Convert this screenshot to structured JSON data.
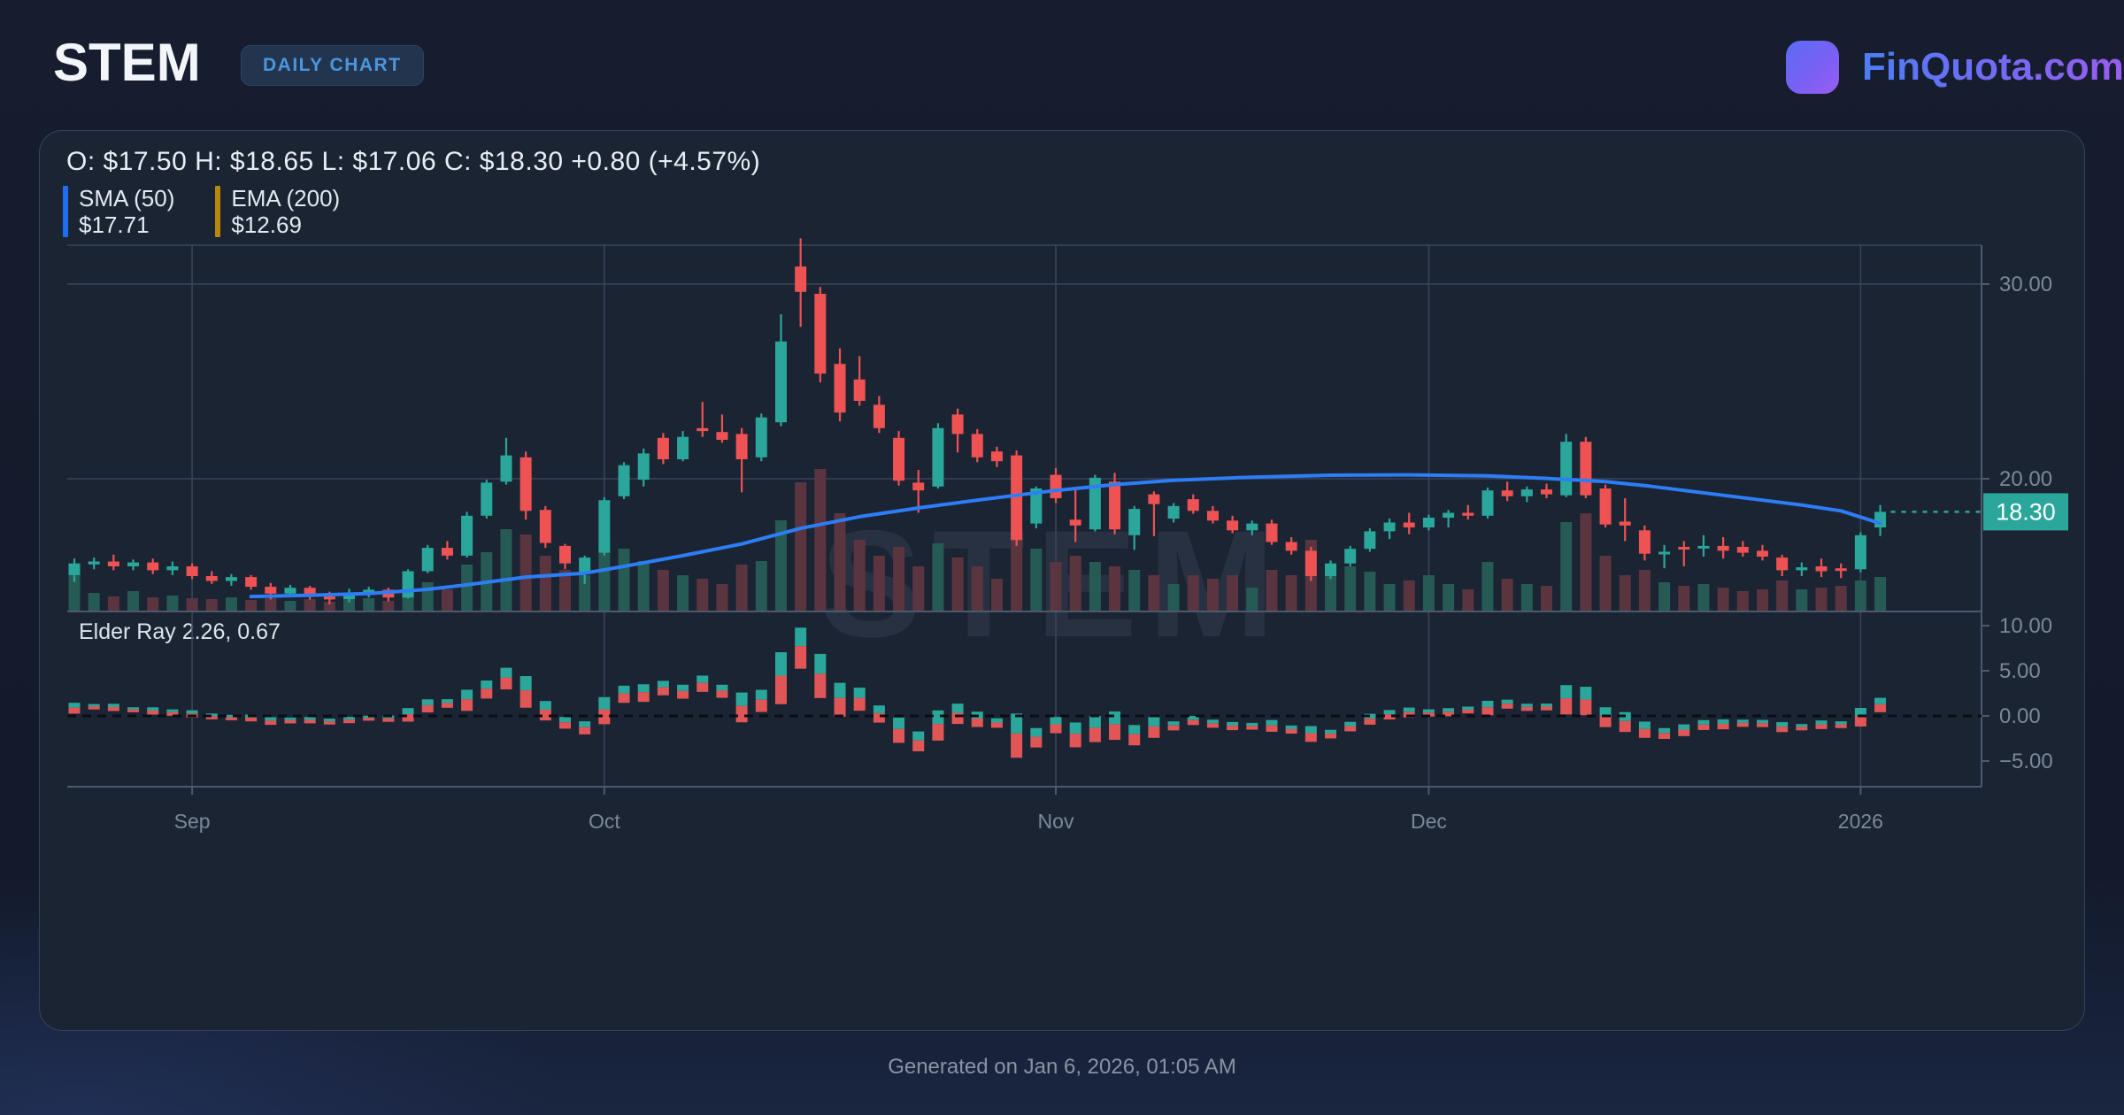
{
  "header": {
    "ticker": "STEM",
    "badge": "DAILY CHART",
    "brand": "FinQuota.com"
  },
  "ohlc_line": "O: $17.50 H: $18.65 L: $17.06 C: $18.30 +0.80 (+4.57%)",
  "indicators": [
    {
      "name": "SMA (50)",
      "value": "$17.71",
      "color": "#1f6ef0"
    },
    {
      "name": "EMA (200)",
      "value": "$12.69",
      "color": "#b8860b"
    }
  ],
  "elder_ray_label": "Elder Ray 2.26, 0.67",
  "watermark": "STEM",
  "footer": {
    "text": "Generated on Jan 6, 2026, 01:05 AM"
  },
  "colors": {
    "candle_up": "#2aa79a",
    "candle_down": "#ee5253",
    "volume_up": "#265a54",
    "volume_down": "#5a3540",
    "sma_line": "#2d7df6",
    "grid": "#39445a",
    "axis_border": "#4d596e",
    "axis_text": "#7c8899",
    "price_tag_bg": "#2aa79a",
    "price_tag_text": "#ffffff",
    "zero_dash": "#0a0e15",
    "elder_bull": "#2aa79a",
    "elder_bear": "#e05656"
  },
  "chart_data": {
    "type": "candlestick",
    "title": "STEM daily candlestick chart with volume, SMA(50) overlay and Elder Ray sub-chart",
    "x_ticks": [
      {
        "label": "Sep",
        "index": 6
      },
      {
        "label": "Oct",
        "index": 27
      },
      {
        "label": "Nov",
        "index": 50
      },
      {
        "label": "Dec",
        "index": 69
      },
      {
        "label": "2026",
        "index": 91
      }
    ],
    "y_axis_main": {
      "ticks": [
        30.0,
        20.0
      ],
      "unit": "USD"
    },
    "y_axis_sub": {
      "ticks": [
        10.0,
        5.0,
        0.0,
        -5.0
      ]
    },
    "last_price": 18.3,
    "last_price_label": "18.30",
    "elder_ray_values": {
      "bull": 2.26,
      "bear": 0.67
    },
    "candles": [
      [
        15.05,
        15.9,
        14.7,
        15.65,
        0.42
      ],
      [
        15.6,
        15.95,
        15.35,
        15.75,
        0.2
      ],
      [
        15.75,
        16.1,
        15.3,
        15.5,
        0.16
      ],
      [
        15.5,
        15.85,
        15.3,
        15.7,
        0.22
      ],
      [
        15.7,
        15.9,
        15.1,
        15.3,
        0.15
      ],
      [
        15.3,
        15.75,
        15.05,
        15.5,
        0.17
      ],
      [
        15.5,
        15.65,
        14.85,
        15.0,
        0.14
      ],
      [
        15.0,
        15.25,
        14.6,
        14.75,
        0.13
      ],
      [
        14.75,
        15.1,
        14.5,
        14.95,
        0.15
      ],
      [
        14.95,
        15.05,
        14.3,
        14.45,
        0.12
      ],
      [
        14.45,
        14.65,
        13.8,
        14.1,
        0.14
      ],
      [
        14.1,
        14.55,
        13.9,
        14.4,
        0.11
      ],
      [
        14.4,
        14.5,
        13.8,
        13.95,
        0.13
      ],
      [
        13.95,
        14.2,
        13.55,
        13.8,
        0.1
      ],
      [
        13.8,
        14.35,
        13.65,
        14.15,
        0.12
      ],
      [
        14.15,
        14.45,
        13.9,
        14.3,
        0.14
      ],
      [
        14.3,
        14.4,
        13.7,
        13.9,
        0.11
      ],
      [
        13.9,
        15.35,
        13.85,
        15.25,
        0.26
      ],
      [
        15.25,
        16.6,
        15.15,
        16.45,
        0.32
      ],
      [
        16.45,
        16.8,
        15.85,
        16.05,
        0.24
      ],
      [
        16.05,
        18.3,
        15.95,
        18.1,
        0.52
      ],
      [
        18.1,
        19.95,
        17.95,
        19.8,
        0.66
      ],
      [
        19.85,
        22.1,
        19.7,
        21.2,
        0.92
      ],
      [
        21.1,
        21.4,
        17.9,
        18.35,
        0.86
      ],
      [
        18.4,
        18.6,
        16.45,
        16.7,
        0.62
      ],
      [
        16.55,
        16.65,
        15.35,
        15.65,
        0.46
      ],
      [
        15.1,
        16.05,
        14.6,
        15.95,
        0.4
      ],
      [
        16.2,
        19.05,
        16.05,
        18.9,
        0.76
      ],
      [
        19.1,
        20.85,
        18.95,
        20.7,
        0.7
      ],
      [
        19.95,
        21.55,
        19.6,
        21.3,
        0.56
      ],
      [
        22.1,
        22.35,
        20.75,
        21.0,
        0.46
      ],
      [
        21.0,
        22.45,
        20.9,
        22.15,
        0.4
      ],
      [
        22.6,
        23.95,
        22.15,
        22.45,
        0.36
      ],
      [
        22.4,
        23.3,
        21.85,
        22.0,
        0.3
      ],
      [
        22.3,
        22.6,
        19.3,
        21.0,
        0.52
      ],
      [
        21.1,
        23.35,
        20.9,
        23.15,
        0.56
      ],
      [
        22.9,
        28.45,
        22.7,
        27.05,
        1.02
      ],
      [
        30.9,
        32.35,
        27.8,
        29.6,
        1.45
      ],
      [
        29.5,
        29.85,
        24.95,
        25.4,
        1.6
      ],
      [
        25.9,
        26.7,
        22.95,
        23.4,
        1.1
      ],
      [
        25.1,
        26.3,
        23.75,
        24.0,
        0.8
      ],
      [
        23.8,
        24.25,
        22.35,
        22.6,
        0.62
      ],
      [
        22.1,
        22.45,
        19.65,
        19.9,
        0.72
      ],
      [
        19.8,
        20.45,
        18.25,
        19.4,
        0.5
      ],
      [
        19.6,
        22.85,
        19.5,
        22.6,
        0.76
      ],
      [
        23.3,
        23.6,
        21.35,
        22.3,
        0.6
      ],
      [
        22.3,
        22.55,
        20.85,
        21.1,
        0.5
      ],
      [
        21.4,
        21.65,
        20.6,
        20.9,
        0.36
      ],
      [
        21.2,
        21.45,
        16.55,
        16.85,
        0.95
      ],
      [
        17.7,
        19.6,
        17.45,
        19.5,
        0.7
      ],
      [
        20.2,
        20.55,
        18.75,
        19.0,
        0.55
      ],
      [
        17.9,
        19.5,
        16.75,
        17.6,
        0.62
      ],
      [
        17.4,
        20.2,
        17.3,
        20.05,
        0.55
      ],
      [
        19.85,
        20.3,
        17.15,
        17.4,
        0.5
      ],
      [
        17.1,
        18.6,
        16.35,
        18.45,
        0.46
      ],
      [
        19.2,
        19.35,
        17.05,
        18.7,
        0.4
      ],
      [
        17.95,
        18.75,
        17.75,
        18.6,
        0.3
      ],
      [
        18.95,
        19.2,
        18.2,
        18.35,
        0.4
      ],
      [
        18.35,
        18.6,
        17.7,
        17.85,
        0.36
      ],
      [
        17.85,
        18.1,
        17.2,
        17.35,
        0.4
      ],
      [
        17.35,
        17.85,
        17.1,
        17.7,
        0.26
      ],
      [
        17.7,
        17.9,
        16.6,
        16.75,
        0.46
      ],
      [
        16.75,
        17.0,
        16.1,
        16.3,
        0.4
      ],
      [
        16.3,
        16.5,
        14.75,
        15.0,
        0.8
      ],
      [
        15.0,
        15.8,
        14.85,
        15.65,
        0.46
      ],
      [
        15.65,
        16.55,
        15.5,
        16.4,
        0.5
      ],
      [
        16.4,
        17.45,
        16.25,
        17.3,
        0.44
      ],
      [
        17.3,
        17.95,
        16.9,
        17.75,
        0.3
      ],
      [
        17.75,
        18.25,
        17.15,
        17.5,
        0.34
      ],
      [
        17.5,
        18.15,
        17.35,
        18.0,
        0.4
      ],
      [
        18.0,
        18.4,
        17.5,
        18.25,
        0.3
      ],
      [
        18.25,
        18.65,
        17.9,
        18.1,
        0.24
      ],
      [
        18.1,
        19.55,
        17.95,
        19.4,
        0.55
      ],
      [
        19.4,
        19.85,
        18.85,
        19.1,
        0.36
      ],
      [
        19.1,
        19.6,
        18.8,
        19.45,
        0.3
      ],
      [
        19.45,
        19.75,
        19.0,
        19.2,
        0.28
      ],
      [
        19.15,
        22.3,
        19.05,
        21.9,
        1.0
      ],
      [
        21.9,
        22.15,
        19.0,
        19.15,
        1.1
      ],
      [
        19.5,
        19.7,
        17.5,
        17.65,
        0.62
      ],
      [
        17.8,
        19.0,
        16.8,
        17.6,
        0.4
      ],
      [
        17.35,
        17.6,
        15.8,
        16.15,
        0.46
      ],
      [
        16.2,
        16.6,
        15.4,
        16.25,
        0.32
      ],
      [
        16.5,
        16.8,
        15.5,
        16.45,
        0.28
      ],
      [
        16.45,
        17.1,
        16.0,
        16.55,
        0.3
      ],
      [
        16.55,
        17.0,
        15.9,
        16.3,
        0.26
      ],
      [
        16.5,
        16.8,
        16.0,
        16.2,
        0.22
      ],
      [
        16.3,
        16.6,
        15.8,
        16.0,
        0.24
      ],
      [
        15.95,
        16.1,
        15.0,
        15.3,
        0.34
      ],
      [
        15.3,
        15.7,
        15.0,
        15.45,
        0.24
      ],
      [
        15.5,
        15.9,
        14.95,
        15.25,
        0.26
      ],
      [
        15.4,
        15.65,
        14.9,
        15.3,
        0.28
      ],
      [
        15.35,
        17.25,
        15.2,
        17.1,
        0.34
      ],
      [
        17.5,
        18.65,
        17.06,
        18.3,
        0.38
      ]
    ],
    "sma50": [
      [
        9,
        13.95
      ],
      [
        12,
        14.02
      ],
      [
        15,
        14.1
      ],
      [
        18,
        14.32
      ],
      [
        20,
        14.55
      ],
      [
        23,
        14.95
      ],
      [
        26,
        15.15
      ],
      [
        28,
        15.5
      ],
      [
        31,
        16.05
      ],
      [
        34,
        16.65
      ],
      [
        37,
        17.45
      ],
      [
        40,
        18.05
      ],
      [
        43,
        18.5
      ],
      [
        46,
        18.9
      ],
      [
        48,
        19.15
      ],
      [
        50,
        19.4
      ],
      [
        53,
        19.7
      ],
      [
        56,
        19.92
      ],
      [
        60,
        20.08
      ],
      [
        64,
        20.18
      ],
      [
        68,
        20.2
      ],
      [
        72,
        20.15
      ],
      [
        75,
        20.02
      ],
      [
        78,
        19.85
      ],
      [
        80,
        19.65
      ],
      [
        82,
        19.4
      ],
      [
        84,
        19.15
      ],
      [
        86,
        18.9
      ],
      [
        88,
        18.65
      ],
      [
        90,
        18.35
      ],
      [
        92,
        17.71
      ]
    ]
  }
}
